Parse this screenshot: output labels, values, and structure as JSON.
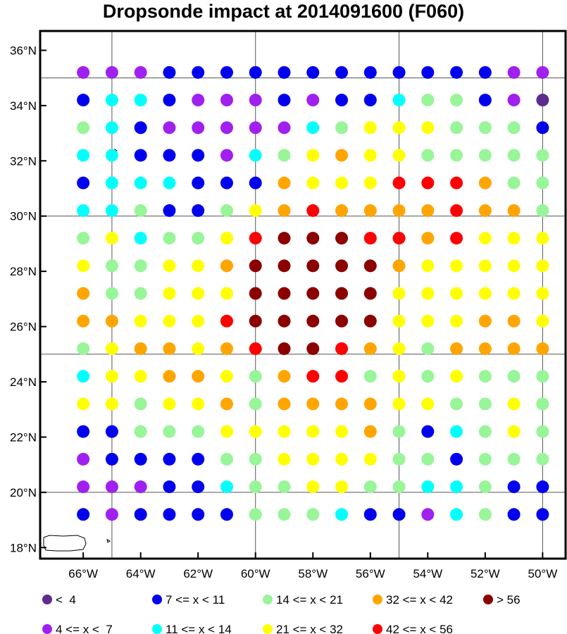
{
  "title": "Dropsonde impact at 2014091600 (F060)",
  "chart_data": {
    "type": "scatter",
    "title": "Dropsonde impact at 2014091600 (F060)",
    "x_ticks": [
      "66°W",
      "64°W",
      "62°W",
      "60°W",
      "58°W",
      "56°W",
      "54°W",
      "52°W",
      "50°W"
    ],
    "y_ticks": [
      "18°N",
      "20°N",
      "22°N",
      "24°N",
      "26°N",
      "28°N",
      "30°N",
      "32°N",
      "34°N",
      "36°N"
    ],
    "xlim": [
      -67.5,
      -49.2
    ],
    "ylim": [
      17.6,
      36.7
    ],
    "grid_lines": {
      "lon": [
        -65,
        -60,
        -55,
        -50
      ],
      "lat": [
        20,
        25,
        30,
        35
      ]
    },
    "x": [
      -66,
      -65,
      -64,
      -63,
      -62,
      -61,
      -60,
      -59,
      -58,
      -57,
      -56,
      -55,
      -54,
      -53,
      -52,
      -51,
      -50
    ],
    "y": [
      35.2,
      34.2,
      33.2,
      32.2,
      31.2,
      30.2,
      29.2,
      28.2,
      27.2,
      26.2,
      25.2,
      24.2,
      23.2,
      22.2,
      21.2,
      20.2,
      19.2
    ],
    "category_codes": [
      "V",
      "V",
      "V",
      "B",
      "B",
      "B",
      "B",
      "B",
      "B",
      "B",
      "B",
      "B",
      "B",
      "B",
      "B",
      "V",
      "V",
      "B",
      "C",
      "C",
      "B",
      "V",
      "V",
      "V",
      "B",
      "V",
      "B",
      "B",
      "C",
      "G",
      "G",
      "B",
      "V",
      "P",
      "G",
      "C",
      "B",
      "V",
      "V",
      "V",
      "V",
      "V",
      "C",
      "G",
      "Y",
      "Y",
      "Y",
      "G",
      "G",
      "G",
      "B",
      "C",
      "C",
      "B",
      "B",
      "B",
      "V",
      "C",
      "G",
      "Y",
      "O",
      "Y",
      "Y",
      "G",
      "G",
      "G",
      "G",
      "G",
      "B",
      "C",
      "C",
      "C",
      "B",
      "B",
      "B",
      "O",
      "Y",
      "Y",
      "Y",
      "R",
      "R",
      "R",
      "O",
      "G",
      "G",
      "C",
      "C",
      "G",
      "B",
      "B",
      "G",
      "Y",
      "O",
      "R",
      "O",
      "O",
      "O",
      "O",
      "R",
      "O",
      "O",
      "G",
      "G",
      "Y",
      "C",
      "G",
      "G",
      "Y",
      "R",
      "D",
      "D",
      "D",
      "R",
      "R",
      "O",
      "R",
      "Y",
      "Y",
      "Y",
      "Y",
      "G",
      "G",
      "Y",
      "Y",
      "O",
      "D",
      "D",
      "D",
      "D",
      "D",
      "O",
      "Y",
      "Y",
      "Y",
      "Y",
      "Y",
      "O",
      "G",
      "G",
      "Y",
      "Y",
      "Y",
      "D",
      "D",
      "D",
      "D",
      "D",
      "Y",
      "Y",
      "Y",
      "Y",
      "Y",
      "Y",
      "O",
      "O",
      "Y",
      "Y",
      "Y",
      "R",
      "D",
      "D",
      "D",
      "D",
      "D",
      "Y",
      "Y",
      "Y",
      "O",
      "O",
      "Y",
      "G",
      "Y",
      "O",
      "O",
      "Y",
      "O",
      "R",
      "D",
      "D",
      "R",
      "O",
      "Y",
      "G",
      "O",
      "O",
      "O",
      "O",
      "C",
      "Y",
      "Y",
      "O",
      "O",
      "Y",
      "G",
      "O",
      "R",
      "R",
      "G",
      "Y",
      "G",
      "Y",
      "G",
      "G",
      "G",
      "Y",
      "Y",
      "G",
      "Y",
      "Y",
      "O",
      "G",
      "O",
      "O",
      "O",
      "O",
      "Y",
      "Y",
      "G",
      "G",
      "Y",
      "G",
      "B",
      "B",
      "G",
      "G",
      "G",
      "Y",
      "Y",
      "Y",
      "Y",
      "Y",
      "O",
      "G",
      "B",
      "C",
      "G",
      "Y",
      "G",
      "V",
      "B",
      "B",
      "B",
      "B",
      "G",
      "G",
      "Y",
      "Y",
      "Y",
      "Y",
      "G",
      "G",
      "B",
      "G",
      "G",
      "G",
      "V",
      "V",
      "V",
      "B",
      "B",
      "C",
      "G",
      "G",
      "Y",
      "Y",
      "G",
      "G",
      "C",
      "C",
      "G",
      "B",
      "B",
      "B",
      "V",
      "B",
      "B",
      "B",
      "B",
      "G",
      "G",
      "G",
      "C",
      "B",
      "B",
      "V",
      "C",
      "G",
      "B",
      "B"
    ],
    "legend": [
      {
        "code": "P",
        "label": "<  4",
        "color": "#5e2b8f"
      },
      {
        "code": "B",
        "label": "7 <= x < 11",
        "color": "#0000ee"
      },
      {
        "code": "G",
        "label": "14 <= x < 21",
        "color": "#98f598"
      },
      {
        "code": "O",
        "label": "32 <= x < 42",
        "color": "#ffa500"
      },
      {
        "code": "D",
        "label": "> 56",
        "color": "#8b0000"
      },
      {
        "code": "V",
        "label": "4 <= x <  7",
        "color": "#a020f0"
      },
      {
        "code": "C",
        "label": "11 <= x < 14",
        "color": "#00ffff"
      },
      {
        "code": "Y",
        "label": "21 <= x < 32",
        "color": "#ffff00"
      },
      {
        "code": "R",
        "label": "42 <= x < 56",
        "color": "#ff0000"
      }
    ],
    "grid": true,
    "legend_position": "bottom"
  }
}
